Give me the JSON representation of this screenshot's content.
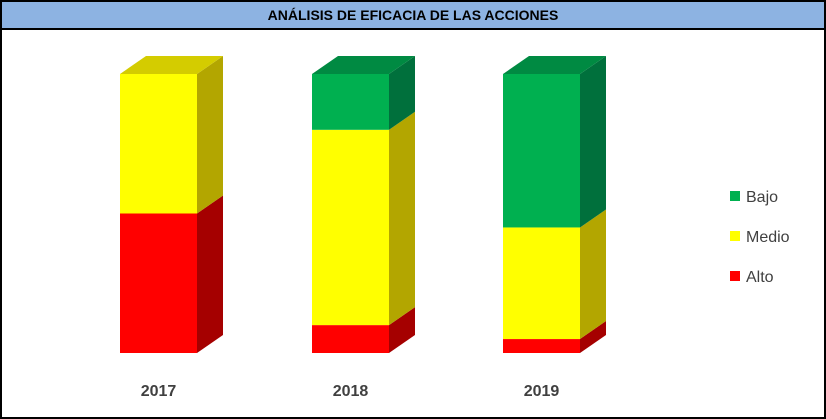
{
  "chart_data": {
    "type": "bar",
    "stacked": true,
    "three_d": true,
    "title": "ANÁLISIS DE EFICACIA DE LAS ACCIONES",
    "categories": [
      "2017",
      "2018",
      "2019"
    ],
    "series": [
      {
        "name": "Alto",
        "values": [
          50,
          10,
          5
        ],
        "color": "#ff0000",
        "side_color": "#a50000",
        "top_color": "#c00000"
      },
      {
        "name": "Medio",
        "values": [
          50,
          70,
          40
        ],
        "color": "#ffff00",
        "side_color": "#b3a600",
        "top_color": "#d4cc00"
      },
      {
        "name": "Bajo",
        "values": [
          0,
          20,
          55
        ],
        "color": "#00b050",
        "side_color": "#00703c",
        "top_color": "#008a42"
      }
    ],
    "ylim": [
      0,
      100
    ],
    "grid": false,
    "legend_position": "right",
    "legend_order": [
      "Bajo",
      "Medio",
      "Alto"
    ]
  }
}
